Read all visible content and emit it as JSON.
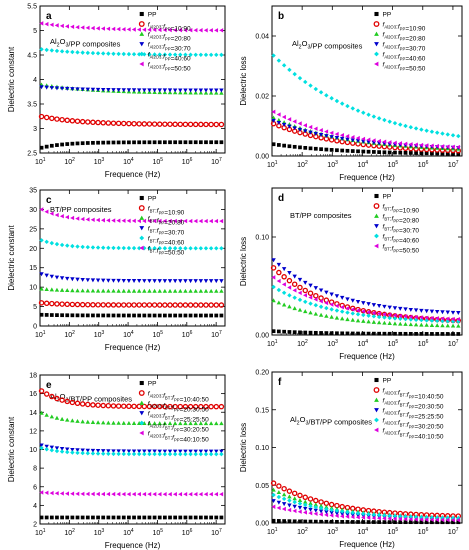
{
  "chart_data": [
    {
      "type": "scatter",
      "panel": "a",
      "title": "Al2O3/PP composites",
      "xlabel": "Frequence (Hz)",
      "ylabel": "Dielectric constant",
      "xscale": "log",
      "xlim": [
        10,
        20000000
      ],
      "ylim": [
        2.5,
        5.5
      ],
      "yticks": [
        2.5,
        3.0,
        3.5,
        4.0,
        4.5,
        5.0,
        5.5
      ],
      "legend_position": "top-right",
      "grid": false,
      "series": [
        {
          "name": "PP",
          "color": "#000000",
          "marker": "square",
          "start": 2.6,
          "end": 2.72,
          "decay": 0.2
        },
        {
          "name": "fAl2O3:fPP=10:90",
          "color": "#e00000",
          "marker": "circle",
          "start": 3.25,
          "end": 3.08,
          "decay": 0.35
        },
        {
          "name": "fAl2O3:fPP=20:80",
          "color": "#22cc22",
          "marker": "triangle-up",
          "start": 3.9,
          "end": 3.72,
          "decay": 0.45
        },
        {
          "name": "fAl2O3:fPP=30:70",
          "color": "#0000cc",
          "marker": "triangle-down",
          "start": 3.85,
          "end": 3.78,
          "decay": 0.3
        },
        {
          "name": "fAl2O3:fPP=40:60",
          "color": "#00e0e0",
          "marker": "diamond",
          "start": 4.62,
          "end": 4.5,
          "decay": 0.4
        },
        {
          "name": "fAl2O3:fPP=50:50",
          "color": "#dd00dd",
          "marker": "triangle-left",
          "start": 5.15,
          "end": 5.0,
          "decay": 0.4
        }
      ]
    },
    {
      "type": "scatter",
      "panel": "b",
      "title": "Al2O3/PP composites",
      "xlabel": "Frequence (Hz)",
      "ylabel": "Dielectric loss",
      "xscale": "log",
      "xlim": [
        10,
        20000000
      ],
      "ylim": [
        0.0,
        0.05
      ],
      "yticks": [
        0.0,
        0.02,
        0.04
      ],
      "legend_position": "top-right",
      "grid": false,
      "series": [
        {
          "name": "PP",
          "color": "#000000",
          "marker": "square",
          "start": 0.004,
          "end": 0.0005,
          "decay": 0.6
        },
        {
          "name": "fAl2O3:fPP=10:90",
          "color": "#e00000",
          "marker": "circle",
          "start": 0.011,
          "end": 0.001,
          "decay": 0.6
        },
        {
          "name": "fAl2O3:fPP=20:80",
          "color": "#22cc22",
          "marker": "triangle-up",
          "start": 0.013,
          "end": 0.0015,
          "decay": 0.6
        },
        {
          "name": "fAl2O3:fPP=30:70",
          "color": "#0000cc",
          "marker": "triangle-down",
          "start": 0.012,
          "end": 0.002,
          "decay": 0.6
        },
        {
          "name": "fAl2O3:fPP=40:60",
          "color": "#00e0e0",
          "marker": "diamond",
          "start": 0.034,
          "end": 0.002,
          "decay": 0.8
        },
        {
          "name": "fAl2O3:fPP=50:50",
          "color": "#dd00dd",
          "marker": "triangle-left",
          "start": 0.015,
          "end": 0.002,
          "decay": 0.6
        }
      ]
    },
    {
      "type": "scatter",
      "panel": "c",
      "title": "BT/PP composites",
      "xlabel": "Frequence (Hz)",
      "ylabel": "Dielectric constant",
      "xscale": "log",
      "xlim": [
        10,
        20000000
      ],
      "ylim": [
        0,
        35
      ],
      "yticks": [
        0,
        5,
        10,
        15,
        20,
        25,
        30,
        35
      ],
      "legend_position": "top-right",
      "grid": false,
      "series": [
        {
          "name": "PP",
          "color": "#000000",
          "marker": "square",
          "start": 2.9,
          "end": 2.7,
          "decay": 0.2
        },
        {
          "name": "fBT:fPP=10:90",
          "color": "#e00000",
          "marker": "circle",
          "start": 6.0,
          "end": 5.4,
          "decay": 0.2
        },
        {
          "name": "fBT:fPP=20:80",
          "color": "#22cc22",
          "marker": "triangle-up",
          "start": 9.6,
          "end": 9.0,
          "decay": 0.2
        },
        {
          "name": "fBT:fPP=30:70",
          "color": "#0000cc",
          "marker": "triangle-down",
          "start": 13.5,
          "end": 11.6,
          "decay": 0.2
        },
        {
          "name": "fBT:fPP=40:60",
          "color": "#00e0e0",
          "marker": "diamond",
          "start": 22.2,
          "end": 20.0,
          "decay": 0.2
        },
        {
          "name": "fBT:fPP=50:50",
          "color": "#dd00dd",
          "marker": "triangle-left",
          "start": 30.2,
          "end": 27.0,
          "decay": 0.2
        }
      ]
    },
    {
      "type": "scatter",
      "panel": "d",
      "title": "BT/PP composites",
      "xlabel": "Frequence (Hz)",
      "ylabel": "Dielectric loss",
      "xscale": "log",
      "xlim": [
        10,
        20000000
      ],
      "ylim": [
        0.0,
        0.15
      ],
      "yticks": [
        0.0,
        0.1
      ],
      "legend_position": "top-right",
      "grid": false,
      "series": [
        {
          "name": "PP",
          "color": "#000000",
          "marker": "square",
          "start": 0.004,
          "end": 0.001,
          "decay": 0.4
        },
        {
          "name": "fBT:fPP=10:90",
          "color": "#e00000",
          "marker": "circle",
          "start": 0.07,
          "end": 0.012,
          "decay": 0.5
        },
        {
          "name": "fBT:fPP=20:80",
          "color": "#22cc22",
          "marker": "triangle-up",
          "start": 0.036,
          "end": 0.008,
          "decay": 0.5
        },
        {
          "name": "fBT:fPP=30:70",
          "color": "#0000cc",
          "marker": "triangle-down",
          "start": 0.078,
          "end": 0.02,
          "decay": 0.5
        },
        {
          "name": "fBT:fPP=40:60",
          "color": "#00e0e0",
          "marker": "diamond",
          "start": 0.05,
          "end": 0.012,
          "decay": 0.5
        },
        {
          "name": "fBT:fPP=50:50",
          "color": "#dd00dd",
          "marker": "triangle-left",
          "start": 0.06,
          "end": 0.014,
          "decay": 0.5
        }
      ]
    },
    {
      "type": "scatter",
      "panel": "e",
      "title": "Al2O3/BT/PP composites",
      "xlabel": "Frequence (Hz)",
      "ylabel": "Dielectric constant",
      "xscale": "log",
      "xlim": [
        10,
        20000000
      ],
      "ylim": [
        2,
        18
      ],
      "yticks": [
        2,
        4,
        6,
        8,
        10,
        12,
        14,
        16,
        18
      ],
      "legend_position": "top-right",
      "grid": false,
      "series": [
        {
          "name": "PP",
          "color": "#000000",
          "marker": "square",
          "start": 2.7,
          "end": 2.7,
          "decay": 0.2
        },
        {
          "name": "fAl2O3:fBT:fPP=10:40:50",
          "color": "#e00000",
          "marker": "circle",
          "start": 16.4,
          "end": 14.6,
          "decay": 0.2
        },
        {
          "name": "fAl2O3:fBT:fPP=20:30:50",
          "color": "#22cc22",
          "marker": "triangle-up",
          "start": 14.0,
          "end": 12.8,
          "decay": 0.2
        },
        {
          "name": "fAl2O3:fBT:fPP=25:25:50",
          "color": "#0000cc",
          "marker": "triangle-down",
          "start": 10.5,
          "end": 9.8,
          "decay": 0.2
        },
        {
          "name": "fAl2O3:fBT:fPP=30:20:50",
          "color": "#00e0e0",
          "marker": "diamond",
          "start": 10.2,
          "end": 9.5,
          "decay": 0.2
        },
        {
          "name": "fAl2O3:fBT:fPP=40:10:50",
          "color": "#dd00dd",
          "marker": "triangle-left",
          "start": 5.4,
          "end": 5.2,
          "decay": 0.2
        }
      ]
    },
    {
      "type": "scatter",
      "panel": "f",
      "title": "Al2O3/BT/PP composites",
      "xlabel": "Frequence (Hz)",
      "ylabel": "Dielectric loss",
      "xscale": "log",
      "xlim": [
        10,
        20000000
      ],
      "ylim": [
        0.0,
        0.2
      ],
      "yticks": [
        0.0,
        0.05,
        0.1,
        0.15,
        0.2
      ],
      "legend_position": "top-right",
      "grid": false,
      "series": [
        {
          "name": "PP",
          "color": "#000000",
          "marker": "square",
          "start": 0.003,
          "end": 0.001,
          "decay": 0.4
        },
        {
          "name": "fAl2O3:fBT:fPP=10:40:50",
          "color": "#e00000",
          "marker": "circle",
          "start": 0.054,
          "end": 0.007,
          "decay": 0.5
        },
        {
          "name": "fAl2O3:fBT:fPP=20:30:50",
          "color": "#22cc22",
          "marker": "triangle-up",
          "start": 0.045,
          "end": 0.005,
          "decay": 0.5
        },
        {
          "name": "fAl2O3:fBT:fPP=25:25:50",
          "color": "#0000cc",
          "marker": "triangle-down",
          "start": 0.03,
          "end": 0.004,
          "decay": 0.5
        },
        {
          "name": "fAl2O3:fBT:fPP=30:20:50",
          "color": "#00e0e0",
          "marker": "diamond",
          "start": 0.038,
          "end": 0.005,
          "decay": 0.5
        },
        {
          "name": "fAl2O3:fBT:fPP=40:10:50",
          "color": "#dd00dd",
          "marker": "triangle-left",
          "start": 0.022,
          "end": 0.003,
          "decay": 0.5
        }
      ]
    }
  ]
}
